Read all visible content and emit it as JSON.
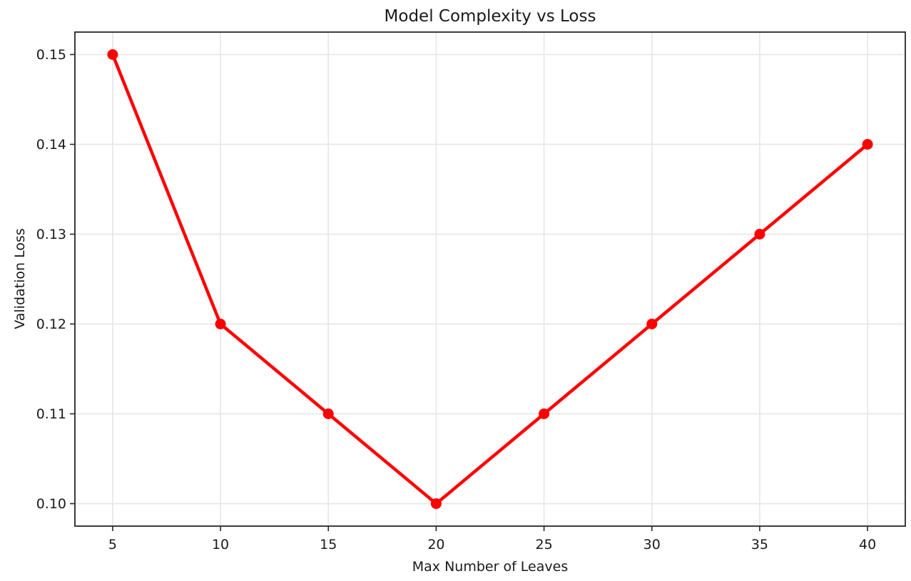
{
  "chart_data": {
    "type": "line",
    "title": "Model Complexity vs Loss",
    "xlabel": "Max Number of Leaves",
    "ylabel": "Validation Loss",
    "x": [
      5,
      10,
      15,
      20,
      25,
      30,
      35,
      40
    ],
    "series": [
      {
        "name": "Validation Loss",
        "values": [
          0.15,
          0.12,
          0.11,
          0.1,
          0.11,
          0.12,
          0.13,
          0.14
        ],
        "color": "#ff0000",
        "marker": "circle",
        "line_width": 4.5,
        "marker_radius": 7.5
      }
    ],
    "xlim": [
      3.25,
      41.75
    ],
    "ylim": [
      0.0975,
      0.1525
    ],
    "xticks": [
      5,
      10,
      15,
      20,
      25,
      30,
      35,
      40
    ],
    "xtick_labels": [
      "5",
      "10",
      "15",
      "20",
      "25",
      "30",
      "35",
      "40"
    ],
    "yticks": [
      0.1,
      0.11,
      0.12,
      0.13,
      0.14,
      0.15
    ],
    "ytick_labels": [
      "0.10",
      "0.11",
      "0.12",
      "0.13",
      "0.14",
      "0.15"
    ],
    "grid": true,
    "legend": "none",
    "colors": {
      "background": "#ffffff",
      "grid": "#e8e8e8",
      "spine": "#262626",
      "tick": "#262626",
      "text": "#1a1a1a"
    }
  }
}
